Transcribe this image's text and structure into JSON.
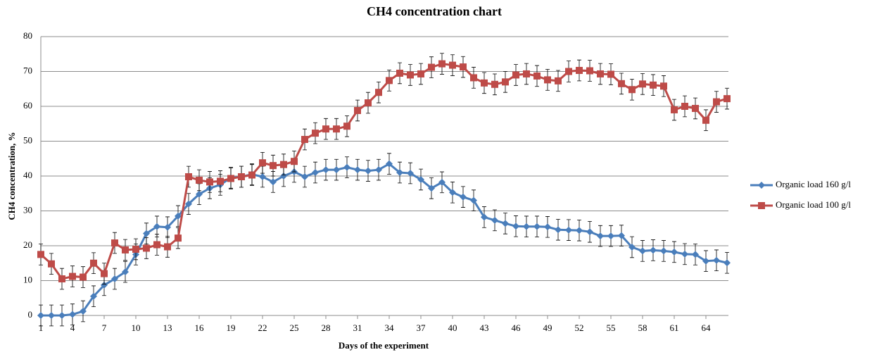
{
  "chart_data": {
    "type": "line",
    "title": "CH4 concentration chart",
    "x_label": "Days of the experiment",
    "y_label": "CH4 concentration, %",
    "x": [
      1,
      2,
      3,
      4,
      5,
      6,
      7,
      8,
      9,
      10,
      11,
      12,
      13,
      14,
      15,
      16,
      17,
      18,
      19,
      20,
      21,
      22,
      23,
      24,
      25,
      26,
      27,
      28,
      29,
      30,
      31,
      32,
      33,
      34,
      35,
      36,
      37,
      38,
      39,
      40,
      41,
      42,
      43,
      44,
      45,
      46,
      47,
      48,
      49,
      50,
      51,
      52,
      53,
      54,
      55,
      56,
      57,
      58,
      59,
      60,
      61,
      62,
      63,
      64,
      65,
      66
    ],
    "xlim": [
      1,
      66
    ],
    "xticks": [
      1,
      4,
      7,
      10,
      13,
      16,
      19,
      22,
      25,
      28,
      31,
      34,
      37,
      40,
      43,
      46,
      49,
      52,
      55,
      58,
      61,
      64
    ],
    "ylim": [
      0,
      80
    ],
    "yticks": [
      0,
      10,
      20,
      30,
      40,
      50,
      60,
      70,
      80
    ],
    "grid": true,
    "legend": "right",
    "series": [
      {
        "name": "Organic load 160 g/l",
        "color": "#4a7ebb",
        "marker": "diamond",
        "error": 3,
        "values": [
          0,
          0,
          0,
          0.3,
          1.2,
          5.5,
          8.7,
          10.5,
          12.5,
          17.5,
          23.5,
          25.5,
          25.3,
          28.5,
          32,
          34.8,
          36.5,
          37.5,
          39.5,
          39.8,
          40.5,
          39.8,
          38.3,
          40,
          41.2,
          39.8,
          41,
          41.8,
          41.8,
          42.5,
          41.8,
          41.5,
          41.8,
          43.5,
          41,
          40.8,
          39,
          36.5,
          38.2,
          35.3,
          34,
          33,
          28.2,
          27.3,
          26.4,
          25.6,
          25.5,
          25.5,
          25.4,
          24.6,
          24.5,
          24.4,
          24,
          22.8,
          22.8,
          22.9,
          19.6,
          18.5,
          18.7,
          18.5,
          18.2,
          17.6,
          17.5,
          15.6,
          15.8,
          15.1
        ]
      },
      {
        "name": "Organic load 100 g/l",
        "color": "#be4b48",
        "marker": "square",
        "error": 3,
        "values": [
          17.5,
          14.8,
          10.5,
          11.2,
          11,
          15,
          12,
          20.8,
          18.8,
          19,
          19.3,
          20.3,
          19.7,
          22.2,
          39.8,
          38.8,
          38.3,
          38.5,
          39.3,
          39.8,
          40.3,
          43.8,
          43,
          43.3,
          44.2,
          50.5,
          52.3,
          53.5,
          53.5,
          54.3,
          58.8,
          61,
          64,
          67.4,
          69.5,
          69,
          69.3,
          71.2,
          72.2,
          71.8,
          71.3,
          68.2,
          66.7,
          66.3,
          67,
          69,
          69.3,
          68.7,
          67.6,
          67.3,
          70,
          70.3,
          70.2,
          69.3,
          69.2,
          66.5,
          64.8,
          66.4,
          66.1,
          65.8,
          59,
          60,
          59.4,
          56,
          61.3,
          62.2
        ]
      }
    ]
  }
}
